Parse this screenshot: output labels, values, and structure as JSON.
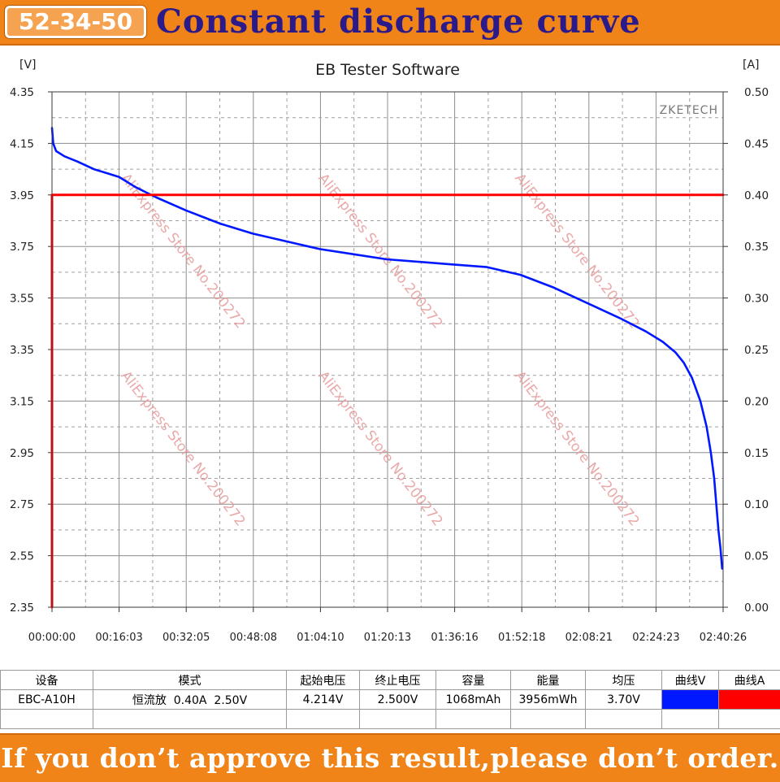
{
  "header": {
    "badge": "52-34-50",
    "title": "Constant discharge curve"
  },
  "chart_data": {
    "type": "line",
    "title": "EB Tester Software",
    "watermark_brand": "ZKETECH",
    "watermark_text": "AliExpress Store No.200272",
    "y_left_unit": "[V]",
    "y_right_unit": "[A]",
    "ylim_left": [
      2.35,
      4.35
    ],
    "ylim_right": [
      0.0,
      0.5
    ],
    "y_left_ticks": [
      "4.35",
      "4.15",
      "3.95",
      "3.75",
      "3.55",
      "3.35",
      "3.15",
      "2.95",
      "2.75",
      "2.55",
      "2.35"
    ],
    "y_right_ticks": [
      "0.50",
      "0.45",
      "0.40",
      "0.35",
      "0.30",
      "0.25",
      "0.20",
      "0.15",
      "0.10",
      "0.05",
      "0.00"
    ],
    "x_ticks": [
      "00:00:00",
      "00:16:03",
      "00:32:05",
      "00:48:08",
      "01:04:10",
      "01:20:13",
      "01:36:16",
      "01:52:18",
      "02:08:21",
      "02:24:23",
      "02:40:26"
    ],
    "grid": true,
    "series": [
      {
        "name": "曲线V",
        "axis": "left",
        "color": "#0018ff",
        "x_minutes": [
          0,
          0.3,
          1,
          3,
          6,
          10,
          16,
          20,
          25,
          32,
          40,
          48,
          56,
          64,
          72,
          80,
          88,
          96,
          104,
          112,
          120,
          128,
          136,
          142,
          146,
          149,
          151,
          153,
          155,
          156.5,
          157.5,
          158.3,
          158.8,
          159.3,
          159.8,
          160.2
        ],
        "values": [
          4.21,
          4.15,
          4.12,
          4.1,
          4.08,
          4.05,
          4.02,
          3.98,
          3.94,
          3.89,
          3.84,
          3.8,
          3.77,
          3.74,
          3.72,
          3.7,
          3.69,
          3.68,
          3.67,
          3.64,
          3.59,
          3.53,
          3.47,
          3.42,
          3.38,
          3.34,
          3.3,
          3.24,
          3.15,
          3.05,
          2.95,
          2.85,
          2.75,
          2.65,
          2.58,
          2.5
        ]
      },
      {
        "name": "曲线A",
        "axis": "right",
        "color": "#ff0000",
        "x_minutes": [
          0,
          0,
          160.43
        ],
        "values": [
          0.0,
          0.4,
          0.4
        ]
      }
    ]
  },
  "table": {
    "headers": [
      "设备",
      "模式",
      "起始电压",
      "终止电压",
      "容量",
      "能量",
      "均压",
      "曲线V",
      "曲线A"
    ],
    "row": [
      "EBC-A10H",
      "恒流放  0.40A  2.50V",
      "4.214V",
      "2.500V",
      "1068mAh",
      "3956mWh",
      "3.70V",
      "",
      ""
    ],
    "colors": {
      "curve_v": "#0018ff",
      "curve_a": "#ff0000"
    }
  },
  "footer": {
    "text": "If you don’t approve this result,please don’t order."
  }
}
